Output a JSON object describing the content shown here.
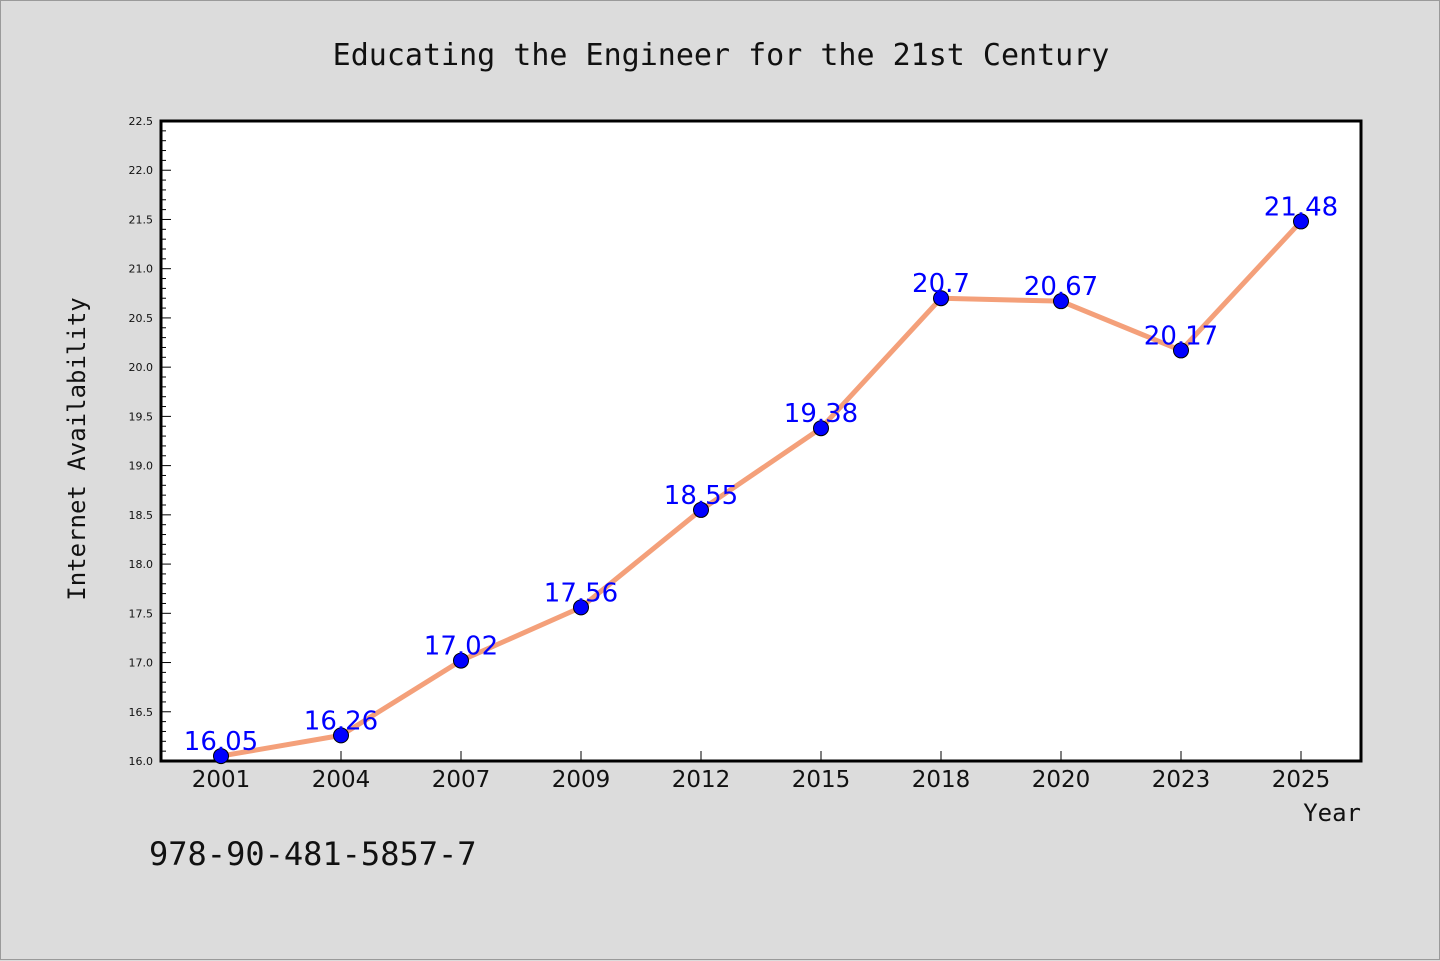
{
  "chart_data": {
    "type": "line",
    "title": "Educating the Engineer for the 21st Century",
    "xlabel": "Year",
    "ylabel": "Internet Availability",
    "categories": [
      "2001",
      "2004",
      "2007",
      "2009",
      "2012",
      "2015",
      "2018",
      "2020",
      "2023",
      "2025"
    ],
    "series": [
      {
        "values": [
          16.05,
          16.26,
          17.02,
          17.56,
          18.55,
          19.38,
          20.7,
          20.67,
          20.17,
          21.48
        ],
        "data_labels": [
          "16.05",
          "16.26",
          "17.02",
          "17.56",
          "18.55",
          "19.38",
          "20.7",
          "20.67",
          "20.17",
          "21.48"
        ],
        "line_color": "#f4a07a",
        "marker_color": "#0000ff"
      }
    ],
    "ylim": [
      16.0,
      22.5
    ],
    "y_ticks": [
      "16.0",
      "16.5",
      "17.0",
      "17.5",
      "18.0",
      "18.5",
      "19.0",
      "19.5",
      "20.0",
      "20.5",
      "21.0",
      "21.5",
      "22.0",
      "22.5"
    ],
    "grid": false,
    "legend": "none",
    "background_color": "#dcdcdc",
    "plot_background_color": "#ffffff"
  },
  "footer": {
    "text": "978-90-481-5857-7"
  }
}
